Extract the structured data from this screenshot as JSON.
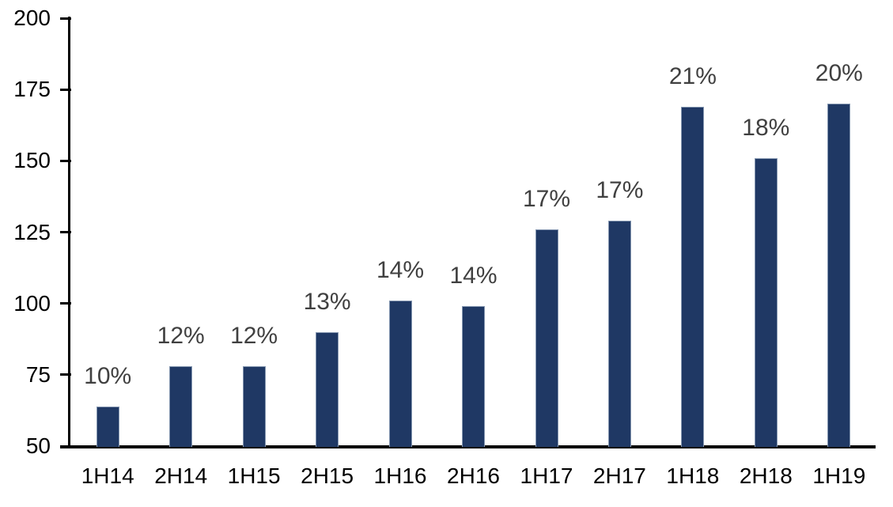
{
  "chart_data": {
    "type": "bar",
    "categories": [
      "1H14",
      "2H14",
      "1H15",
      "2H15",
      "1H16",
      "2H16",
      "1H17",
      "2H17",
      "1H18",
      "2H18",
      "1H19"
    ],
    "values": [
      64,
      78,
      78,
      90,
      101,
      99,
      126,
      129,
      169,
      151,
      170
    ],
    "data_labels": [
      "10%",
      "12%",
      "12%",
      "13%",
      "14%",
      "14%",
      "17%",
      "17%",
      "21%",
      "18%",
      "20%"
    ],
    "title": "",
    "xlabel": "",
    "ylabel": "",
    "ylim": [
      50,
      200
    ],
    "yticks": [
      "50",
      "75",
      "100",
      "125",
      "150",
      "175",
      "200"
    ],
    "grid": false,
    "legend": "none",
    "colors": {
      "bar_fill": "#1F3864",
      "bar_border": "#8496B0",
      "data_label": "#404040",
      "axis_text": "#000000",
      "axis_line": "#000000",
      "background": "#FFFFFF"
    }
  }
}
